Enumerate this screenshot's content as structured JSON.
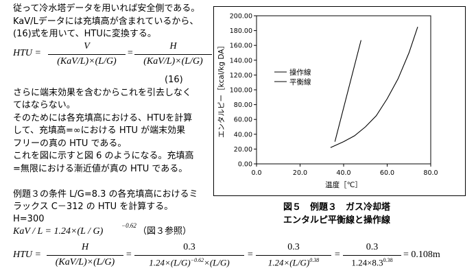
{
  "body_lines": [
    "従って冷水塔データを用いれば安全側である。",
    "KaV/Lデータには充填高が含まれているから、",
    "(16)式を用いて、HTUに変換する。"
  ],
  "eq16": {
    "lhs": "HTU =",
    "num1": "V",
    "den1": "(KaV/L)×(L/G)",
    "eq2": "=",
    "num2": "H",
    "den2": "(KaV/L)×(L/G)",
    "label": "(16)"
  },
  "para2": [
    "さらに端末効果を含むからこれを引去しなく",
    "てはならない。",
    "そのためには各充填高における、HTUを計算",
    "して、充填高=∞における HTU が端末効果",
    "フリーの真の HTU である。",
    "これを図に示すと図 6 のようになる。充填高",
    "=無限における漸近値が真の HTU である。"
  ],
  "para3": [
    "例題３の条件 L/G=8.3 の各充填高におけるミ",
    "ラックス C－312 の HTU を計算する。",
    "H=300"
  ],
  "kav_eq": {
    "text": "KaV / L = 1.24×(L / G)",
    "exp": "−0.62",
    "ref": "（図３参照）"
  },
  "htu_eq": {
    "lhs": "HTU =",
    "num1": "H",
    "den1": "(KaV/L)×(L/G)",
    "eq": "=",
    "num2": "0.3",
    "den2a": "1.24×(L/G)",
    "den2exp": "−0.62",
    "den2b": "×(L/G)",
    "num3": "0.3",
    "den3a": "1.24×(L/G)",
    "den3exp": "0.38",
    "num4": "0.3",
    "den4a": "1.24×8.3",
    "den4exp": "0.38",
    "result": "= 0.108m"
  },
  "caption": {
    "line1": "図５　例題３　ガス冷却塔",
    "line2": "エンタルピ平衡線と操作線"
  },
  "chart_data": {
    "type": "line",
    "xlabel": "温度［℃］",
    "ylabel": "エンタルピー［kcal/kg DA］",
    "xlim": [
      0,
      80
    ],
    "ylim": [
      0,
      200
    ],
    "x_ticks": [
      "0.0",
      "20.0",
      "40.0",
      "60.0",
      "80.0"
    ],
    "y_ticks": [
      "0.00",
      "20.00",
      "40.00",
      "60.00",
      "80.00",
      "100.00",
      "120.00",
      "140.00",
      "160.00",
      "180.00",
      "200.00"
    ],
    "legend_position": "middle-left",
    "series": [
      {
        "name": "操作線",
        "points": [
          [
            36,
            30
          ],
          [
            48,
            167
          ]
        ]
      },
      {
        "name": "平衡線",
        "points": [
          [
            34,
            22
          ],
          [
            40,
            30
          ],
          [
            45,
            38
          ],
          [
            50,
            50
          ],
          [
            55,
            65
          ],
          [
            60,
            88
          ],
          [
            65,
            115
          ],
          [
            70,
            150
          ],
          [
            74,
            185
          ]
        ]
      }
    ]
  }
}
